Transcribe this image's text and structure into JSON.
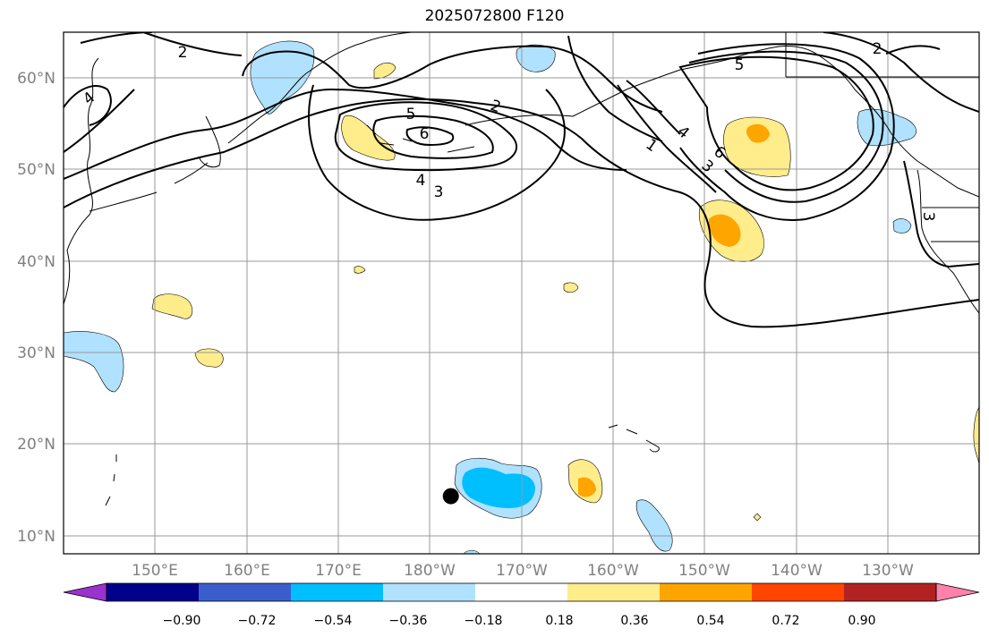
{
  "title": "2025072800 F120",
  "map": {
    "lat_labels": [
      "60°N",
      "50°N",
      "40°N",
      "30°N",
      "20°N",
      "10°N"
    ],
    "lat_values": [
      60,
      50,
      40,
      30,
      20,
      10
    ],
    "lon_labels": [
      "150°E",
      "160°E",
      "170°E",
      "180°W",
      "170°W",
      "160°W",
      "150°W",
      "140°W",
      "130°W"
    ],
    "lon_values": [
      150,
      160,
      170,
      180,
      190,
      200,
      210,
      220,
      230
    ],
    "extent": {
      "lon_min": 140,
      "lon_max": 240,
      "lat_min": 8,
      "lat_max": 65
    },
    "contour_labels": [
      "2",
      "4",
      "5",
      "6",
      "4",
      "3",
      "2",
      "1",
      "4",
      "3",
      "6",
      "5",
      "2",
      "3"
    ],
    "marker": {
      "lon": 182.3,
      "lat": 14.3,
      "color": "#000000"
    },
    "grid": "on"
  },
  "colorbar": {
    "ticks": [
      "−0.90",
      "−0.72",
      "−0.54",
      "−0.36",
      "−0.18",
      "0.18",
      "0.36",
      "0.54",
      "0.72",
      "0.90"
    ],
    "colors": [
      "#9a32cd",
      "#00008b",
      "#3a5fcd",
      "#00bfff",
      "#b0e2ff",
      "#ffffff",
      "#ffec8b",
      "#ffa500",
      "#ff4500",
      "#b22222",
      "#ff82ab"
    ]
  }
}
